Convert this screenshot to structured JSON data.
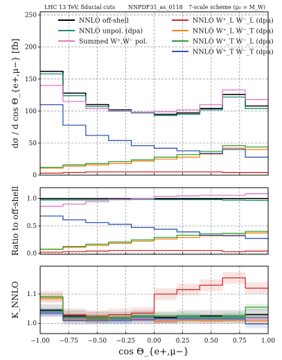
{
  "header": {
    "left": "LHC 13 TeV, fiducial cuts",
    "middle": "NNPDF31_as_0118",
    "right": "7-scale scheme (μ₀ = M_W)"
  },
  "xaxis": {
    "label": "cos Θ_{e+,μ−}",
    "ticks": [
      "−1.00",
      "−0.75",
      "−0.50",
      "−0.25",
      "0.00",
      "0.25",
      "0.50",
      "0.75",
      "1.00"
    ]
  },
  "chart_data": [
    {
      "type": "line",
      "panel": "distribution",
      "ylabel": "dσ / d cos Θ_{e+,μ−}  [fb]",
      "ylim": [
        0,
        255
      ],
      "yticks": [
        "0",
        "50",
        "100",
        "150",
        "200",
        "250"
      ],
      "bin_edges": [
        -1.0,
        -0.8,
        -0.6,
        -0.4,
        -0.2,
        0.0,
        0.2,
        0.4,
        0.6,
        0.8,
        1.0
      ],
      "series": [
        {
          "name": "NNLO off-shell",
          "color": "#000000",
          "values": [
            162,
            128,
            110,
            102,
            98,
            95,
            97,
            104,
            126,
            108
          ]
        },
        {
          "name": "NNLO unpol. (dpa)",
          "color": "#1a8a7a",
          "values": [
            158,
            124,
            107,
            100,
            97,
            93,
            95,
            102,
            122,
            104
          ]
        },
        {
          "name": "Summed W⁺,W⁻ pol.",
          "color": "#e277c8",
          "values": [
            140,
            115,
            104,
            101,
            98,
            99,
            102,
            110,
            133,
            118
          ]
        },
        {
          "name": "NNLO W⁺_L W⁻_L (dpa)",
          "color": "#d62728",
          "values": [
            3,
            4,
            5,
            5,
            5,
            5,
            5,
            5,
            4,
            4
          ]
        },
        {
          "name": "NNLO W⁺_L W⁻_T (dpa)",
          "color": "#ff7f0e",
          "values": [
            11,
            14,
            16,
            18,
            22,
            25,
            28,
            33,
            42,
            40
          ]
        },
        {
          "name": "NNLO W⁺_T W⁻_L (dpa)",
          "color": "#2ca02c",
          "values": [
            12,
            16,
            18,
            21,
            24,
            28,
            32,
            37,
            46,
            44
          ]
        },
        {
          "name": "NNLO W⁺_T W⁻_T (dpa)",
          "color": "#2f55b5",
          "values": [
            110,
            78,
            62,
            54,
            46,
            42,
            38,
            34,
            40,
            28
          ]
        }
      ]
    },
    {
      "type": "line",
      "panel": "ratio",
      "ylabel": "Ratio to off-shell",
      "ylim": [
        -0.02,
        1.2
      ],
      "yticks": [
        "0.0",
        "0.5",
        "1.0"
      ],
      "bin_edges": [
        -1.0,
        -0.8,
        -0.6,
        -0.4,
        -0.2,
        0.0,
        0.2,
        0.4,
        0.6,
        0.8,
        1.0
      ],
      "series": [
        {
          "name": "NNLO off-shell",
          "color": "#000000",
          "values": [
            1,
            1,
            1,
            1,
            1,
            1,
            1,
            1,
            1,
            1
          ]
        },
        {
          "name": "NNLO unpol. (dpa)",
          "color": "#1a8a7a",
          "values": [
            0.975,
            0.975,
            0.975,
            0.98,
            0.985,
            0.98,
            0.98,
            0.98,
            0.97,
            0.965
          ]
        },
        {
          "name": "Summed W⁺,W⁻ pol.",
          "color": "#e277c8",
          "values": [
            0.86,
            0.9,
            0.945,
            0.99,
            1.0,
            1.04,
            1.05,
            1.06,
            1.06,
            1.09
          ]
        },
        {
          "name": "NNLO W⁺_L W⁻_L (dpa)",
          "color": "#d62728",
          "values": [
            0.02,
            0.03,
            0.04,
            0.05,
            0.05,
            0.05,
            0.05,
            0.05,
            0.03,
            0.04
          ]
        },
        {
          "name": "NNLO W⁺_L W⁻_T (dpa)",
          "color": "#ff7f0e",
          "values": [
            0.07,
            0.11,
            0.14,
            0.18,
            0.22,
            0.26,
            0.29,
            0.32,
            0.33,
            0.37
          ]
        },
        {
          "name": "NNLO W⁺_T W⁻_L (dpa)",
          "color": "#2ca02c",
          "values": [
            0.075,
            0.125,
            0.165,
            0.205,
            0.245,
            0.29,
            0.33,
            0.355,
            0.365,
            0.4
          ]
        },
        {
          "name": "NNLO W⁺_T W⁻_T (dpa)",
          "color": "#2f55b5",
          "values": [
            0.68,
            0.61,
            0.56,
            0.53,
            0.47,
            0.44,
            0.39,
            0.33,
            0.32,
            0.27
          ]
        }
      ]
    },
    {
      "type": "line",
      "panel": "k-factor",
      "ylabel": "K_NNLO",
      "ylim": [
        0.965,
        1.195
      ],
      "yticks": [
        "1.0",
        "1.1"
      ],
      "bin_edges": [
        -1.0,
        -0.8,
        -0.6,
        -0.4,
        -0.2,
        0.0,
        0.2,
        0.4,
        0.6,
        0.8,
        1.0
      ],
      "series": [
        {
          "name": "NNLO off-shell",
          "color": "#000000",
          "values": [
            1.045,
            1.025,
            1.02,
            1.02,
            1.025,
            1.02,
            1.025,
            1.025,
            1.025,
            1.03
          ],
          "band": 0.02
        },
        {
          "name": "NNLO unpol. (dpa)",
          "color": "#1a8a7a",
          "values": [
            1.04,
            1.02,
            1.015,
            1.015,
            1.02,
            1.015,
            1.02,
            1.02,
            1.02,
            1.02
          ],
          "band": 0.012
        },
        {
          "name": "Summed W⁺,W⁻ pol.",
          "color": "#e277c8",
          "values": [
            1.035,
            1.015,
            1.012,
            1.012,
            1.015,
            1.01,
            1.015,
            1.015,
            1.015,
            1.018
          ],
          "band": 0.008
        },
        {
          "name": "NNLO W⁺_L W⁻_L (dpa)",
          "color": "#d62728",
          "values": [
            1.09,
            1.03,
            1.025,
            1.03,
            1.035,
            1.1,
            1.115,
            1.13,
            1.155,
            1.12
          ],
          "band": 0.02
        },
        {
          "name": "NNLO W⁺_L W⁻_T (dpa)",
          "color": "#ff7f0e",
          "values": [
            1.085,
            1.01,
            1.012,
            1.02,
            1.012,
            1.008,
            1.01,
            1.008,
            1.01,
            1.008
          ],
          "band": 0.01
        },
        {
          "name": "NNLO W⁺_T W⁻_L (dpa)",
          "color": "#2ca02c",
          "values": [
            1.09,
            1.018,
            1.02,
            1.02,
            1.025,
            1.025,
            1.025,
            1.02,
            1.025,
            1.055
          ],
          "band": 0.012
        },
        {
          "name": "NNLO W⁺_T W⁻_T (dpa)",
          "color": "#2f55b5",
          "values": [
            1.035,
            1.01,
            1.01,
            1.01,
            1.012,
            1.015,
            1.015,
            1.015,
            1.015,
            0.998
          ],
          "band": 0.015
        }
      ]
    }
  ]
}
